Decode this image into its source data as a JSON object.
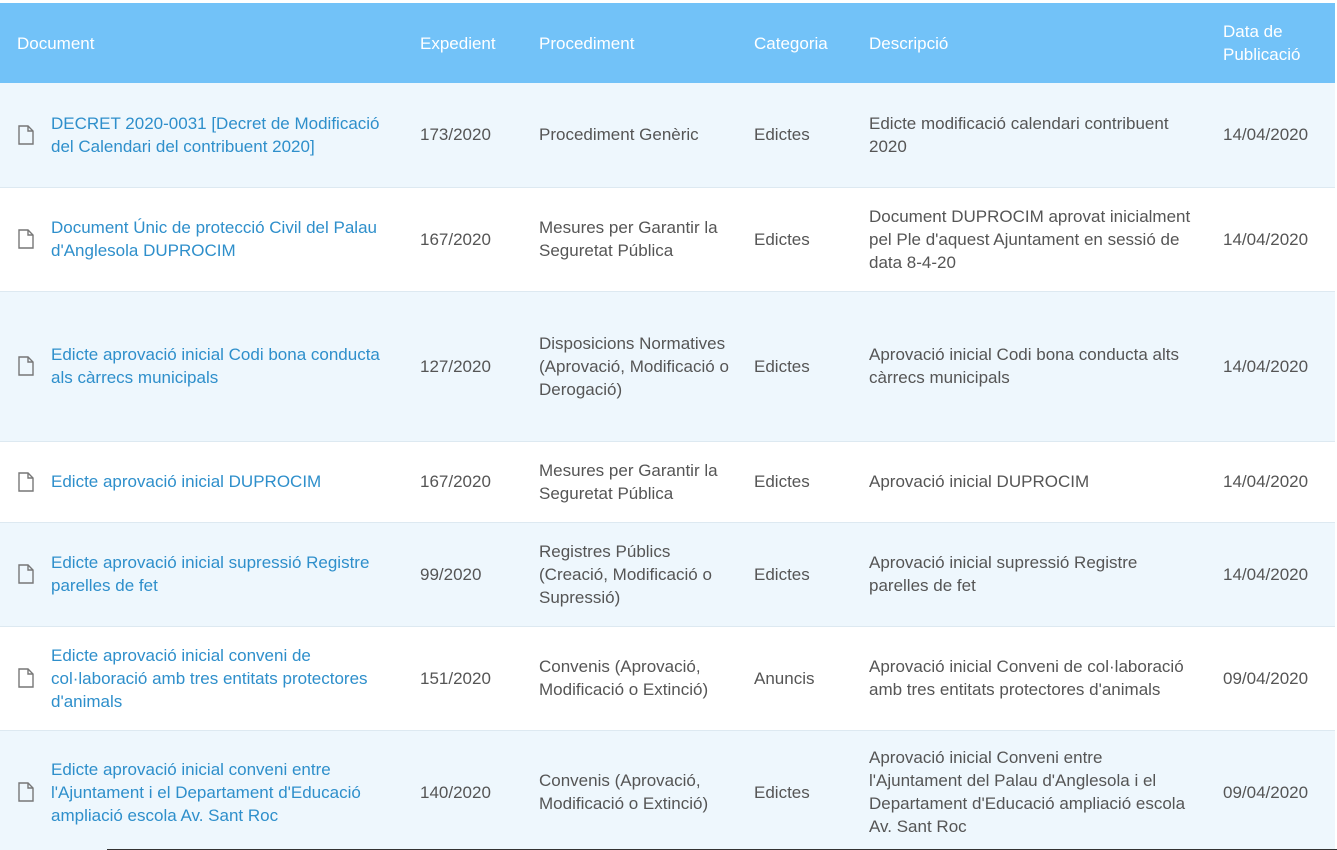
{
  "table": {
    "headers": {
      "document": "Document",
      "expedient": "Expedient",
      "procediment": "Procediment",
      "categoria": "Categoria",
      "descripcio": "Descripció",
      "data": "Data de Publicació"
    },
    "rows": [
      {
        "document": "DECRET 2020-0031 [Decret de Modificació del Calendari del contribuent 2020]",
        "expedient": "173/2020",
        "procediment": "Procediment Genèric",
        "categoria": "Edictes",
        "descripcio": "Edicte modificació calendari contribuent 2020",
        "data": "14/04/2020"
      },
      {
        "document": "Document Únic de protecció Civil del Palau d'Anglesola DUPROCIM",
        "expedient": "167/2020",
        "procediment": "Mesures per Garantir la Seguretat Pública",
        "categoria": "Edictes",
        "descripcio": "Document DUPROCIM aprovat inicialment pel Ple d'aquest Ajuntament en sessió de data 8-4-20",
        "data": "14/04/2020"
      },
      {
        "document": "Edicte aprovació inicial Codi bona conducta als càrrecs municipals",
        "expedient": "127/2020",
        "procediment": "Disposicions Normatives (Aprovació, Modificació o Derogació)",
        "categoria": "Edictes",
        "descripcio": "Aprovació inicial Codi bona conducta alts càrrecs municipals",
        "data": "14/04/2020"
      },
      {
        "document": "Edicte aprovació inicial DUPROCIM",
        "expedient": "167/2020",
        "procediment": "Mesures per Garantir la Seguretat Pública",
        "categoria": "Edictes",
        "descripcio": "Aprovació inicial DUPROCIM",
        "data": "14/04/2020"
      },
      {
        "document": "Edicte aprovació inicial supressió Registre parelles de fet",
        "expedient": "99/2020",
        "procediment": "Registres Públics (Creació, Modificació o Supressió)",
        "categoria": "Edictes",
        "descripcio": "Aprovació inicial supressió Registre parelles de fet",
        "data": "14/04/2020"
      },
      {
        "document": "Edicte aprovació inicial conveni de col·laboració amb tres entitats protectores d'animals",
        "expedient": "151/2020",
        "procediment": "Convenis (Aprovació, Modificació o Extinció)",
        "categoria": "Anuncis",
        "descripcio": "Aprovació inicial Conveni de col·laboració amb tres entitats protectores d'animals",
        "data": "09/04/2020"
      },
      {
        "document": "Edicte aprovació inicial conveni entre l'Ajuntament i el Departament d'Educació ampliació escola Av. Sant Roc",
        "expedient": "140/2020",
        "procediment": "Convenis (Aprovació, Modificació o Extinció)",
        "categoria": "Edictes",
        "descripcio": "Aprovació inicial Conveni entre l'Ajuntament del Palau d'Anglesola i el Departament d'Educació ampliació escola Av. Sant Roc",
        "data": "09/04/2020"
      }
    ]
  },
  "icons": {
    "row_icon": "file-icon"
  },
  "colors": {
    "header_bg": "#72c2f8",
    "header_text": "#ffffff",
    "row_alt_bg": "#eef7fd",
    "link": "#2e8fcb",
    "text": "#555555"
  }
}
